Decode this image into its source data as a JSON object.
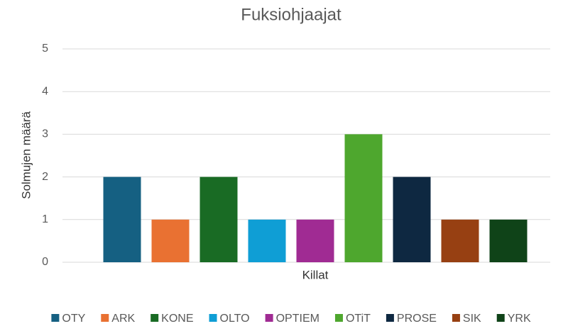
{
  "chart_data": {
    "type": "bar",
    "title": "Fuksiohjaajat",
    "x_label": "Killat",
    "y_label": "Solmujen määrä",
    "categories": [
      null
    ],
    "series": [
      {
        "name": "OTY",
        "color": "#156082",
        "values": [
          2
        ]
      },
      {
        "name": "ARK",
        "color": "#e97132",
        "values": [
          1
        ]
      },
      {
        "name": "KONE",
        "color": "#196b24",
        "values": [
          2
        ]
      },
      {
        "name": "OLTO",
        "color": "#0f9ed5",
        "values": [
          1
        ]
      },
      {
        "name": "OPTIEM",
        "color": "#a02b93",
        "values": [
          1
        ]
      },
      {
        "name": "OTiT",
        "color": "#4ea72e",
        "values": [
          3
        ]
      },
      {
        "name": "PROSE",
        "color": "#0e2841",
        "values": [
          2
        ]
      },
      {
        "name": "SIK",
        "color": "#974012",
        "values": [
          1
        ]
      },
      {
        "name": "YRK",
        "color": "#0f4318",
        "values": [
          1
        ]
      }
    ],
    "ylim": [
      0,
      5
    ],
    "yticks": [
      0,
      1,
      2,
      3,
      4,
      5
    ],
    "grid": true,
    "legend": "bottom"
  }
}
